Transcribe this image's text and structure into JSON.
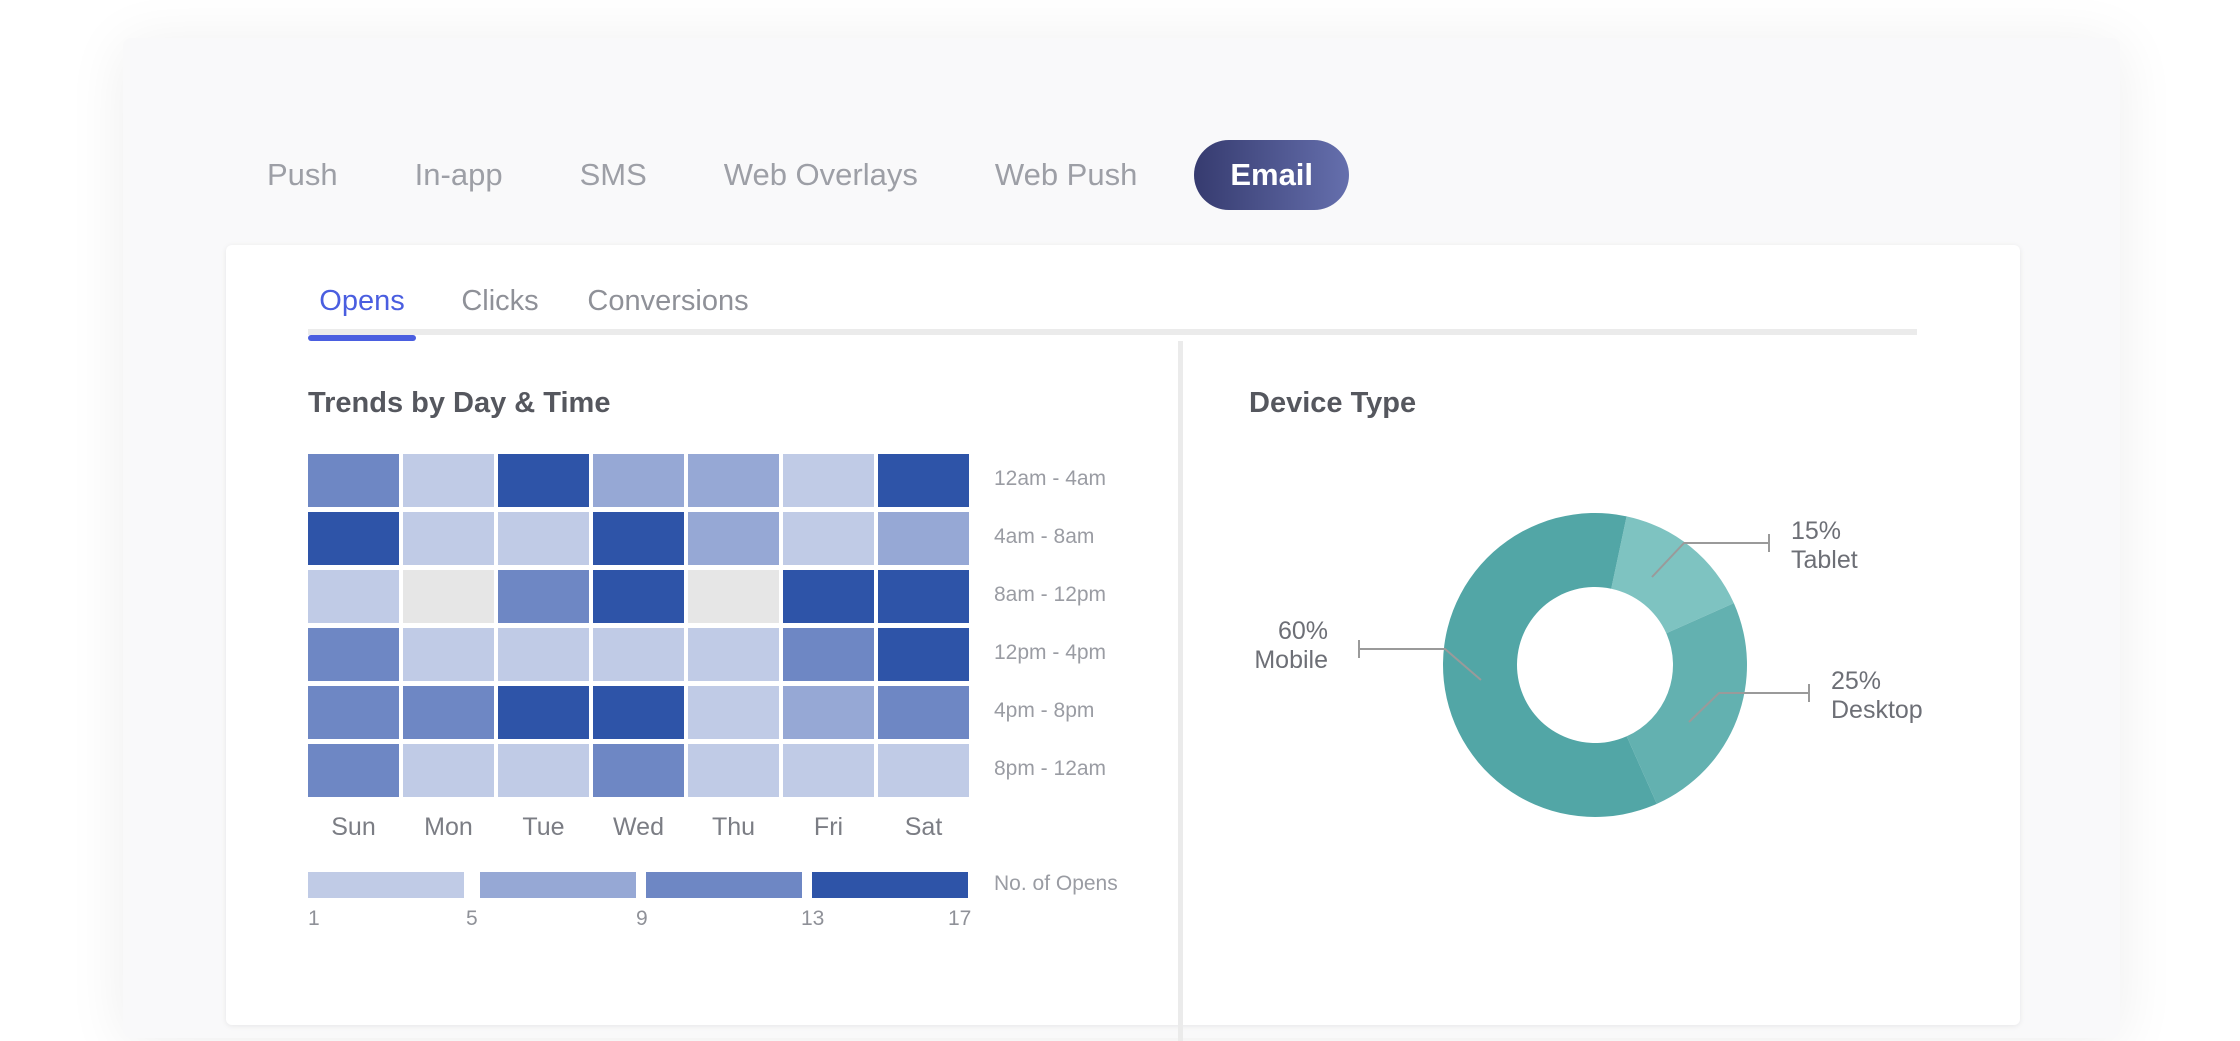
{
  "channels": [
    {
      "label": "Push",
      "active": false
    },
    {
      "label": "In-app",
      "active": false
    },
    {
      "label": "SMS",
      "active": false
    },
    {
      "label": "Web Overlays",
      "active": false
    },
    {
      "label": "Web Push",
      "active": false
    },
    {
      "label": "Email",
      "active": true
    }
  ],
  "metrics": [
    {
      "label": "Opens",
      "active": true
    },
    {
      "label": "Clicks",
      "active": false
    },
    {
      "label": "Conversions",
      "active": false
    }
  ],
  "trends": {
    "title": "Trends by Day & Time",
    "days": [
      "Sun",
      "Mon",
      "Tue",
      "Wed",
      "Thu",
      "Fri",
      "Sat"
    ],
    "time_slots": [
      "12am - 4am",
      "4am - 8am",
      "8am - 12pm",
      "12pm - 4pm",
      "4pm - 8pm",
      "8pm - 12am"
    ],
    "levels": [
      [
        3,
        1,
        4,
        2,
        2,
        1,
        4
      ],
      [
        4,
        1,
        1,
        4,
        2,
        1,
        2
      ],
      [
        1,
        0,
        3,
        4,
        0,
        4,
        4
      ],
      [
        3,
        1,
        1,
        1,
        1,
        3,
        4
      ],
      [
        3,
        3,
        4,
        4,
        1,
        2,
        3
      ],
      [
        3,
        1,
        1,
        3,
        1,
        1,
        1
      ]
    ],
    "level_colors": [
      "#e6e6e6",
      "#c0cbe6",
      "#96a8d5",
      "#6e87c4",
      "#2e54a8"
    ],
    "legend": {
      "title": "No. of Opens",
      "ticks": [
        "1",
        "5",
        "9",
        "13",
        "17"
      ]
    }
  },
  "device": {
    "title": "Device Type",
    "chart_data": {
      "type": "pie",
      "categories": [
        "Mobile",
        "Tablet",
        "Desktop"
      ],
      "values": [
        60,
        15,
        25
      ],
      "value_labels": [
        "60%",
        "15%",
        "25%"
      ],
      "colors": [
        "#52a6a6",
        "#7ec3c1",
        "#63b1b0"
      ]
    }
  }
}
